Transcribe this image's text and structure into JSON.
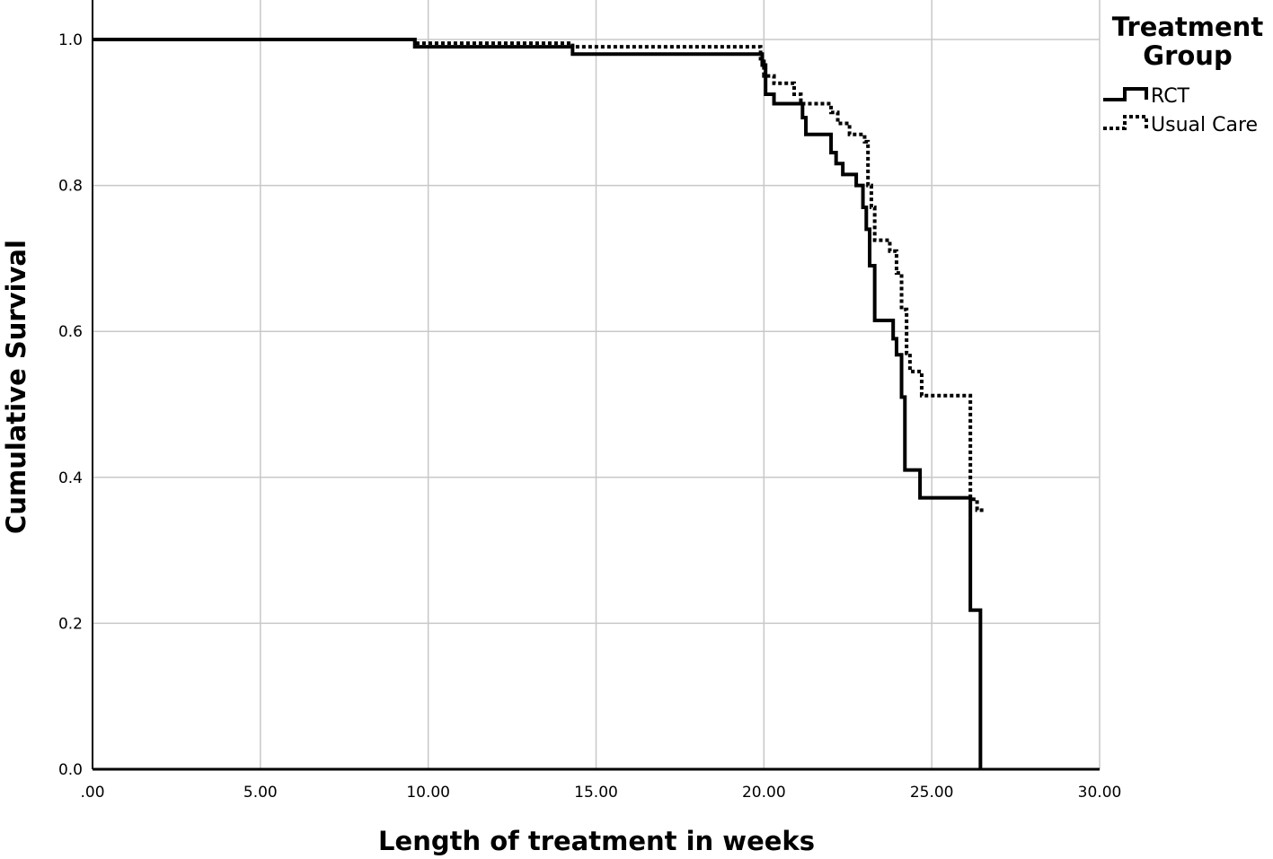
{
  "chart_data": {
    "type": "line",
    "subtype": "kaplan-meier step curve",
    "xlabel": "Length of treatment in weeks",
    "ylabel": "Cumulative Survival",
    "xlim": [
      0,
      30
    ],
    "ylim": [
      0,
      1.05
    ],
    "x_ticks": [
      {
        "value": 0,
        "label": ".00"
      },
      {
        "value": 5,
        "label": "5.00"
      },
      {
        "value": 10,
        "label": "10.00"
      },
      {
        "value": 15,
        "label": "15.00"
      },
      {
        "value": 20,
        "label": "20.00"
      },
      {
        "value": 25,
        "label": "25.00"
      },
      {
        "value": 30,
        "label": "30.00"
      }
    ],
    "y_ticks": [
      {
        "value": 0,
        "label": "0.0"
      },
      {
        "value": 0.2,
        "label": "0.2"
      },
      {
        "value": 0.4,
        "label": "0.4"
      },
      {
        "value": 0.6,
        "label": "0.6"
      },
      {
        "value": 0.8,
        "label": "0.8"
      },
      {
        "value": 1.0,
        "label": "1.0"
      }
    ],
    "grid": true,
    "legend": {
      "title_lines": [
        "Treatment",
        "Group"
      ],
      "position": "top-right"
    },
    "series": [
      {
        "name": "RCT",
        "style": "solid",
        "color": "#000000",
        "steps": [
          [
            0,
            1.0
          ],
          [
            9.6,
            0.99
          ],
          [
            14.3,
            0.98
          ],
          [
            19.95,
            0.965
          ],
          [
            20.05,
            0.925
          ],
          [
            20.3,
            0.912
          ],
          [
            21.15,
            0.893
          ],
          [
            21.25,
            0.87
          ],
          [
            22.0,
            0.845
          ],
          [
            22.15,
            0.83
          ],
          [
            22.35,
            0.815
          ],
          [
            22.75,
            0.8
          ],
          [
            22.95,
            0.77
          ],
          [
            23.05,
            0.74
          ],
          [
            23.15,
            0.69
          ],
          [
            23.3,
            0.615
          ],
          [
            23.85,
            0.59
          ],
          [
            23.95,
            0.568
          ],
          [
            24.1,
            0.51
          ],
          [
            24.2,
            0.41
          ],
          [
            24.65,
            0.372
          ],
          [
            26.15,
            0.218
          ],
          [
            26.45,
            0.0
          ]
        ],
        "end_x": 26.45
      },
      {
        "name": "Usual Care",
        "style": "dotted",
        "color": "#000000",
        "steps": [
          [
            0,
            1.0
          ],
          [
            9.6,
            0.995
          ],
          [
            14.3,
            0.99
          ],
          [
            19.9,
            0.97
          ],
          [
            20.0,
            0.95
          ],
          [
            20.3,
            0.94
          ],
          [
            20.9,
            0.925
          ],
          [
            21.1,
            0.912
          ],
          [
            22.0,
            0.9
          ],
          [
            22.2,
            0.885
          ],
          [
            22.55,
            0.87
          ],
          [
            23.0,
            0.86
          ],
          [
            23.1,
            0.8
          ],
          [
            23.2,
            0.77
          ],
          [
            23.3,
            0.725
          ],
          [
            23.75,
            0.71
          ],
          [
            23.95,
            0.68
          ],
          [
            24.1,
            0.63
          ],
          [
            24.25,
            0.57
          ],
          [
            24.35,
            0.545
          ],
          [
            24.7,
            0.512
          ],
          [
            26.15,
            0.37
          ],
          [
            26.35,
            0.355
          ]
        ],
        "end_x": 26.55
      }
    ]
  }
}
